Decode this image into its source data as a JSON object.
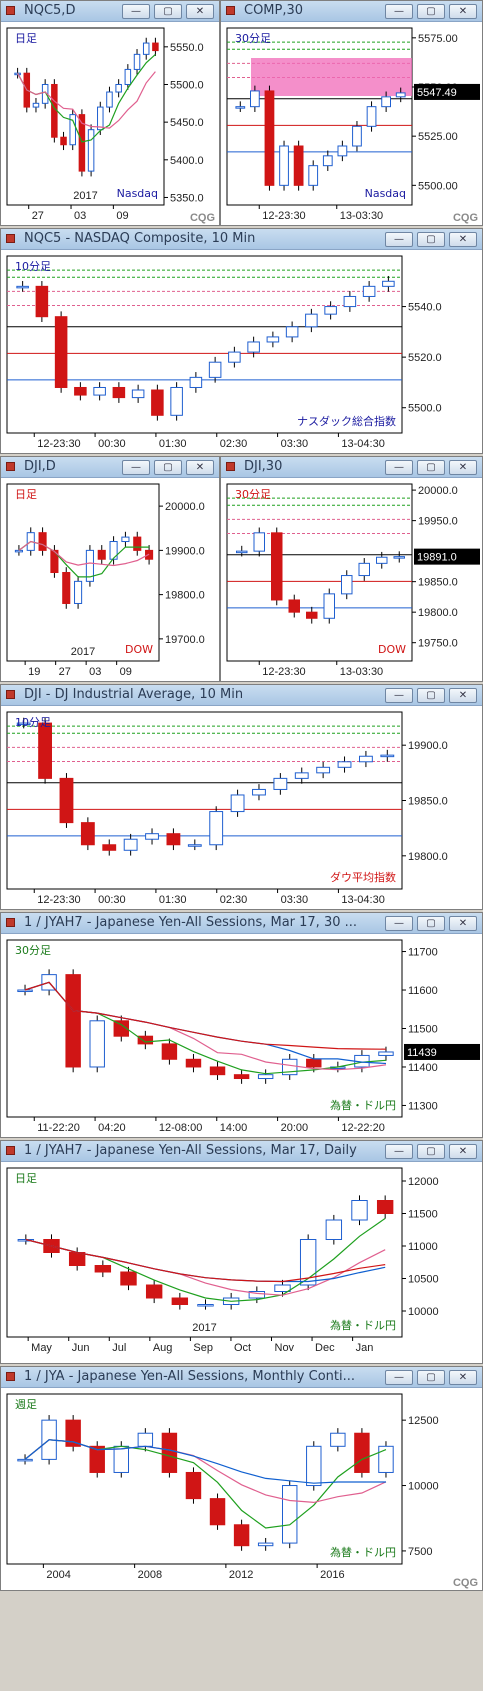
{
  "windows": [
    {
      "id": "w1",
      "title": "NQC5,D",
      "period_label": "日足",
      "footer_label": "Nasdaq",
      "year_label": "2017",
      "y_ticks": [
        "5550.0",
        "5500.0",
        "5450.0",
        "5400.0",
        "5350.0"
      ],
      "x_ticks": [
        "27",
        "03",
        "09"
      ],
      "brand": "CQG",
      "price_badge": ""
    },
    {
      "id": "w2",
      "title": "COMP,30",
      "period_label": "30分足",
      "footer_label": "Nasdaq",
      "year_label": "",
      "y_ticks": [
        "5575.00",
        "5550.00",
        "5525.00",
        "5500.00"
      ],
      "x_ticks": [
        "12-23:30",
        "13-03:30"
      ],
      "brand": "CQG",
      "price_badge": "5547.49"
    },
    {
      "id": "w3",
      "title": "NQC5 - NASDAQ Composite, 10 Min",
      "period_label": "10分足",
      "footer_label": "ナスダック総合指数",
      "year_label": "",
      "y_ticks": [
        "5540.0",
        "5520.0",
        "5500.0"
      ],
      "x_ticks": [
        "12-23:30",
        "00:30",
        "01:30",
        "02:30",
        "03:30",
        "13-04:30"
      ],
      "brand": "",
      "price_badge": ""
    },
    {
      "id": "w4",
      "title": "DJI,D",
      "period_label": "日足",
      "footer_label": "DOW",
      "year_label": "2017",
      "y_ticks": [
        "20000.0",
        "19900.0",
        "19800.0",
        "19700.0"
      ],
      "x_ticks": [
        "19",
        "27",
        "03",
        "09"
      ],
      "brand": "",
      "price_badge": ""
    },
    {
      "id": "w5",
      "title": "DJI,30",
      "period_label": "30分足",
      "footer_label": "DOW",
      "year_label": "",
      "y_ticks": [
        "20000.0",
        "19950.0",
        "19850.0",
        "19800.0",
        "19750.0"
      ],
      "x_ticks": [
        "12-23:30",
        "13-03:30"
      ],
      "brand": "",
      "price_badge": "19891.0"
    },
    {
      "id": "w6",
      "title": "DJI - DJ Industrial Average, 10 Min",
      "period_label": "10分足",
      "footer_label": "ダウ平均指数",
      "year_label": "",
      "y_ticks": [
        "19900.0",
        "19850.0",
        "19800.0"
      ],
      "x_ticks": [
        "12-23:30",
        "00:30",
        "01:30",
        "02:30",
        "03:30",
        "13-04:30"
      ],
      "brand": "",
      "price_badge": ""
    },
    {
      "id": "w7",
      "title": "1 / JYAH7 - Japanese Yen-All Sessions, Mar 17, 30 ...",
      "period_label": "30分足",
      "footer_label": "為替・ドル円",
      "year_label": "",
      "y_ticks": [
        "11700",
        "11600",
        "11500",
        "11400",
        "11300"
      ],
      "x_ticks": [
        "11-22:20",
        "04:20",
        "12-08:00",
        "14:00",
        "20:00",
        "12-22:20"
      ],
      "brand": "",
      "price_badge": "11439"
    },
    {
      "id": "w8",
      "title": "1 / JYAH7 - Japanese Yen-All Sessions, Mar 17, Daily",
      "period_label": "日足",
      "footer_label": "為替・ドル円",
      "year_label": "2017",
      "y_ticks": [
        "12000",
        "11500",
        "11000",
        "10500",
        "10000"
      ],
      "x_ticks": [
        "May",
        "Jun",
        "Jul",
        "Aug",
        "Sep",
        "Oct",
        "Nov",
        "Dec",
        "Jan"
      ],
      "brand": "",
      "price_badge": ""
    },
    {
      "id": "w9",
      "title": "1 / JYA - Japanese Yen-All Sessions, Monthly Conti...",
      "period_label": "週足",
      "footer_label": "為替・ドル円",
      "year_label": "",
      "y_ticks": [
        "12500",
        "10000",
        "7500"
      ],
      "x_ticks": [
        "2004",
        "2008",
        "2012",
        "2016"
      ],
      "brand": "CQG",
      "price_badge": ""
    }
  ],
  "chart_data": [
    {
      "type": "candlestick",
      "window": "NQC5,D",
      "ylim": [
        5340,
        5575
      ],
      "series": [
        {
          "values": [
            5515,
            5470,
            5475,
            5500,
            5430,
            5420,
            5460,
            5385,
            5440,
            5470,
            5490,
            5500,
            5520,
            5540,
            5555,
            5545
          ]
        }
      ]
    },
    {
      "type": "candlestick",
      "window": "COMP,30",
      "ylim": [
        5490,
        5580
      ],
      "series": [
        {
          "values": [
            5540,
            5548,
            5500,
            5520,
            5500,
            5510,
            5515,
            5520,
            5530,
            5540,
            5545,
            5547
          ]
        }
      ]
    },
    {
      "type": "candlestick",
      "window": "NQC5 - NASDAQ Composite, 10 Min",
      "ylim": [
        5490,
        5560
      ],
      "series": [
        {
          "values": [
            5548,
            5536,
            5508,
            5505,
            5508,
            5504,
            5507,
            5497,
            5508,
            5512,
            5518,
            5522,
            5526,
            5528,
            5532,
            5537,
            5540,
            5544,
            5548,
            5550
          ]
        }
      ]
    },
    {
      "type": "candlestick",
      "window": "DJI,D",
      "ylim": [
        19650,
        20050
      ],
      "series": [
        {
          "values": [
            19900,
            19940,
            19900,
            19850,
            19780,
            19830,
            19900,
            19880,
            19920,
            19930,
            19900,
            19880
          ]
        }
      ]
    },
    {
      "type": "candlestick",
      "window": "DJI,30",
      "ylim": [
        19720,
        20010
      ],
      "series": [
        {
          "values": [
            19900,
            19930,
            19820,
            19800,
            19790,
            19830,
            19860,
            19880,
            19890,
            19891
          ]
        }
      ]
    },
    {
      "type": "candlestick",
      "window": "DJI - DJ Industrial Average, 10 Min",
      "ylim": [
        19770,
        19930
      ],
      "series": [
        {
          "values": [
            19920,
            19870,
            19830,
            19810,
            19805,
            19815,
            19820,
            19810,
            19810,
            19840,
            19855,
            19860,
            19870,
            19875,
            19880,
            19885,
            19890,
            19891
          ]
        }
      ]
    },
    {
      "type": "candlestick",
      "window": "1 / JYAH7 30min",
      "ylim": [
        11270,
        11730
      ],
      "series": [
        {
          "values": [
            11600,
            11640,
            11400,
            11520,
            11480,
            11460,
            11420,
            11400,
            11380,
            11370,
            11380,
            11420,
            11400,
            11400,
            11430,
            11439
          ]
        }
      ]
    },
    {
      "type": "candlestick",
      "window": "1 / JYAH7 Daily",
      "ylim": [
        9600,
        12200
      ],
      "series": [
        {
          "values": [
            11100,
            10900,
            10700,
            10600,
            10400,
            10200,
            10100,
            10100,
            10200,
            10300,
            10400,
            11100,
            11400,
            11700,
            11500
          ]
        }
      ]
    },
    {
      "type": "candlestick",
      "window": "1 / JYA Monthly",
      "ylim": [
        7000,
        13500
      ],
      "series": [
        {
          "values": [
            11000,
            12500,
            11500,
            10500,
            11500,
            12000,
            10500,
            9500,
            8500,
            7700,
            7800,
            10000,
            11500,
            12000,
            10500,
            11500
          ]
        }
      ]
    }
  ],
  "colors": {
    "bull": "#1f5fd0",
    "bear": "#d01515",
    "green_line": "#1fa01f",
    "pink_line": "#e0608f",
    "blue_ma": "#1060d0",
    "red_ma": "#d01515",
    "label_blue": "#1a1aa0",
    "label_red": "#d01515",
    "label_green": "#1a7a1a",
    "badge_bg": "#000000"
  },
  "window_buttons": [
    "minimize-icon",
    "restore-icon",
    "close-icon"
  ]
}
